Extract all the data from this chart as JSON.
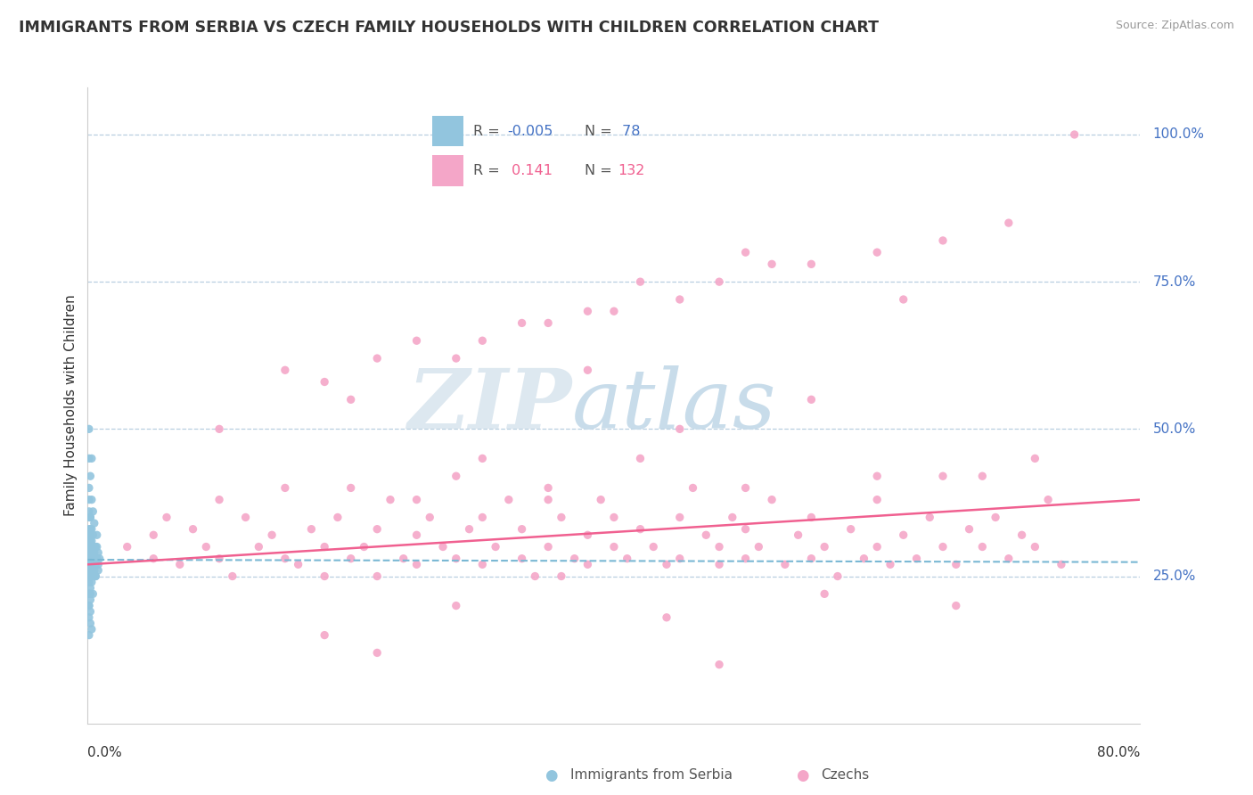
{
  "title": "IMMIGRANTS FROM SERBIA VS CZECH FAMILY HOUSEHOLDS WITH CHILDREN CORRELATION CHART",
  "source": "Source: ZipAtlas.com",
  "ylabel": "Family Households with Children",
  "yticks_labels": [
    "25.0%",
    "50.0%",
    "75.0%",
    "100.0%"
  ],
  "ytick_vals": [
    0.25,
    0.5,
    0.75,
    1.0
  ],
  "xlim": [
    0.0,
    0.8
  ],
  "ylim": [
    0.0,
    1.08
  ],
  "serbia_color": "#92c5de",
  "czech_color": "#f4a6c8",
  "serbia_line_color": "#7ab8d4",
  "czech_line_color": "#f06090",
  "serbia_r": -0.005,
  "serbia_n": 78,
  "czech_r": 0.141,
  "czech_n": 132,
  "serbia_line_y0": 0.278,
  "serbia_line_y1": 0.274,
  "czech_line_y0": 0.27,
  "czech_line_y1": 0.38,
  "serbia_x": [
    0.001,
    0.001,
    0.001,
    0.001,
    0.001,
    0.001,
    0.001,
    0.001,
    0.001,
    0.001,
    0.001,
    0.001,
    0.001,
    0.001,
    0.001,
    0.002,
    0.002,
    0.002,
    0.002,
    0.002,
    0.002,
    0.002,
    0.002,
    0.002,
    0.002,
    0.002,
    0.003,
    0.003,
    0.003,
    0.003,
    0.003,
    0.003,
    0.003,
    0.004,
    0.004,
    0.004,
    0.004,
    0.004,
    0.005,
    0.005,
    0.005,
    0.005,
    0.006,
    0.006,
    0.006,
    0.007,
    0.007,
    0.008,
    0.008,
    0.009,
    0.001,
    0.001,
    0.001,
    0.001,
    0.001,
    0.002,
    0.002,
    0.002,
    0.002,
    0.003,
    0.003,
    0.003,
    0.004,
    0.004,
    0.005,
    0.005,
    0.006,
    0.007,
    0.007,
    0.008,
    0.001,
    0.001,
    0.002,
    0.002,
    0.003,
    0.003,
    0.004,
    0.005
  ],
  "serbia_y": [
    0.3,
    0.28,
    0.27,
    0.29,
    0.32,
    0.26,
    0.31,
    0.33,
    0.35,
    0.25,
    0.22,
    0.24,
    0.38,
    0.36,
    0.2,
    0.3,
    0.28,
    0.27,
    0.31,
    0.29,
    0.33,
    0.26,
    0.32,
    0.25,
    0.35,
    0.22,
    0.28,
    0.3,
    0.27,
    0.25,
    0.33,
    0.31,
    0.26,
    0.29,
    0.27,
    0.3,
    0.32,
    0.25,
    0.28,
    0.3,
    0.26,
    0.29,
    0.27,
    0.3,
    0.25,
    0.28,
    0.3,
    0.27,
    0.29,
    0.28,
    0.15,
    0.18,
    0.2,
    0.22,
    0.45,
    0.19,
    0.23,
    0.17,
    0.21,
    0.24,
    0.16,
    0.26,
    0.28,
    0.22,
    0.3,
    0.27,
    0.25,
    0.28,
    0.32,
    0.26,
    0.5,
    0.4,
    0.35,
    0.42,
    0.38,
    0.45,
    0.36,
    0.34
  ],
  "czech_x": [
    0.03,
    0.05,
    0.05,
    0.06,
    0.07,
    0.08,
    0.09,
    0.1,
    0.1,
    0.11,
    0.12,
    0.13,
    0.14,
    0.15,
    0.15,
    0.16,
    0.17,
    0.18,
    0.18,
    0.19,
    0.2,
    0.2,
    0.21,
    0.22,
    0.22,
    0.23,
    0.24,
    0.25,
    0.25,
    0.26,
    0.27,
    0.28,
    0.28,
    0.29,
    0.3,
    0.3,
    0.31,
    0.32,
    0.33,
    0.33,
    0.34,
    0.35,
    0.35,
    0.36,
    0.37,
    0.38,
    0.38,
    0.39,
    0.4,
    0.4,
    0.41,
    0.42,
    0.43,
    0.44,
    0.45,
    0.45,
    0.46,
    0.47,
    0.48,
    0.48,
    0.49,
    0.5,
    0.5,
    0.51,
    0.52,
    0.53,
    0.54,
    0.55,
    0.55,
    0.56,
    0.57,
    0.58,
    0.59,
    0.6,
    0.6,
    0.61,
    0.62,
    0.63,
    0.64,
    0.65,
    0.65,
    0.66,
    0.67,
    0.68,
    0.69,
    0.7,
    0.71,
    0.72,
    0.73,
    0.74,
    0.28,
    0.35,
    0.42,
    0.5,
    0.18,
    0.45,
    0.3,
    0.38,
    0.25,
    0.55,
    0.62,
    0.7,
    0.15,
    0.33,
    0.48,
    0.6,
    0.22,
    0.4,
    0.52,
    0.65,
    0.1,
    0.2,
    0.75,
    0.38,
    0.55,
    0.3,
    0.45,
    0.68,
    0.25,
    0.42,
    0.6,
    0.35,
    0.5,
    0.72,
    0.18,
    0.28,
    0.44,
    0.56,
    0.66,
    0.36,
    0.22,
    0.48
  ],
  "czech_y": [
    0.3,
    0.32,
    0.28,
    0.35,
    0.27,
    0.33,
    0.3,
    0.28,
    0.38,
    0.25,
    0.35,
    0.3,
    0.32,
    0.28,
    0.4,
    0.27,
    0.33,
    0.3,
    0.25,
    0.35,
    0.28,
    0.4,
    0.3,
    0.33,
    0.25,
    0.38,
    0.28,
    0.32,
    0.27,
    0.35,
    0.3,
    0.28,
    0.42,
    0.33,
    0.27,
    0.35,
    0.3,
    0.38,
    0.28,
    0.33,
    0.25,
    0.3,
    0.4,
    0.35,
    0.28,
    0.32,
    0.27,
    0.38,
    0.3,
    0.35,
    0.28,
    0.33,
    0.3,
    0.27,
    0.35,
    0.28,
    0.4,
    0.32,
    0.3,
    0.27,
    0.35,
    0.28,
    0.33,
    0.3,
    0.38,
    0.27,
    0.32,
    0.28,
    0.35,
    0.3,
    0.25,
    0.33,
    0.28,
    0.3,
    0.38,
    0.27,
    0.32,
    0.28,
    0.35,
    0.3,
    0.42,
    0.27,
    0.33,
    0.3,
    0.35,
    0.28,
    0.32,
    0.3,
    0.38,
    0.27,
    0.62,
    0.68,
    0.75,
    0.8,
    0.58,
    0.72,
    0.65,
    0.7,
    0.65,
    0.78,
    0.72,
    0.85,
    0.6,
    0.68,
    0.75,
    0.8,
    0.62,
    0.7,
    0.78,
    0.82,
    0.5,
    0.55,
    1.0,
    0.6,
    0.55,
    0.45,
    0.5,
    0.42,
    0.38,
    0.45,
    0.42,
    0.38,
    0.4,
    0.45,
    0.15,
    0.2,
    0.18,
    0.22,
    0.2,
    0.25,
    0.12,
    0.1
  ]
}
